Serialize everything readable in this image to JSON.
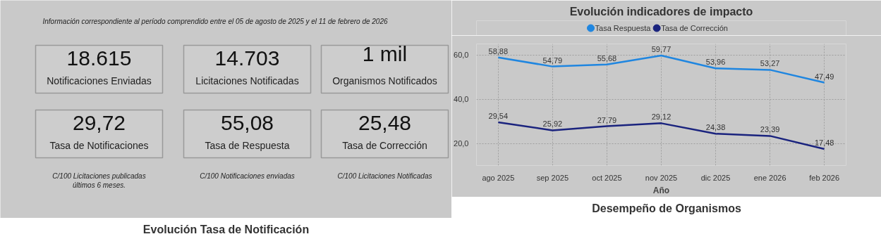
{
  "chart_data": [
    {
      "type": "other",
      "subtitle": "Información correspondiente al período comprendido entre el 05 de agosto de 2025 y el 11 de febrero de 2026",
      "annotations": [
        "18.615",
        "Notificaciones Enviadas",
        "14.703",
        "Licitaciones Notificadas",
        "1 mil",
        "Organismos Notificados",
        "29,72",
        "Tasa de Notificaciones",
        "55,08",
        "Tasa de Respuesta",
        "25,48",
        "Tasa de Corrección",
        "C/100 Licitaciones publicadas\núltimos 6 meses.",
        "C/100 Notificaciones enviadas",
        "C/100 Licitaciones Notificadas"
      ]
    },
    {
      "type": "line",
      "title": "Evolución indicadores de impacto",
      "xlabel": "Año",
      "categories": [
        "ago 2025",
        "sep 2025",
        "oct 2025",
        "nov 2025",
        "dic 2025",
        "ene 2026",
        "feb 2026"
      ],
      "ylim": [
        10,
        65
      ],
      "yticks": [
        {
          "value": 20,
          "label": "20,0"
        },
        {
          "value": 40,
          "label": "40,0"
        },
        {
          "value": 60,
          "label": "60,0"
        }
      ],
      "grid": true,
      "legend": "top",
      "marker": "none",
      "line_style": "solid",
      "series": [
        {
          "name": "Tasa Respuesta",
          "color": "#1f86e0",
          "values": [
            58.88,
            54.79,
            55.68,
            59.77,
            53.96,
            53.27,
            47.49
          ],
          "value_labels": [
            "58,88",
            "54,79",
            "55,68",
            "59,77",
            "53,96",
            "53,27",
            "47,49"
          ]
        },
        {
          "name": "Tasa de Corrección",
          "color": "#1a237e",
          "values": [
            29.54,
            25.92,
            27.79,
            29.12,
            24.38,
            23.39,
            17.48
          ],
          "value_labels": [
            "29,54",
            "25,92",
            "27,79",
            "29,12",
            "24,38",
            "23,39",
            "17,48"
          ]
        }
      ]
    },
    {
      "type": "other",
      "title": "Evolución Tasa de Notificación"
    },
    {
      "type": "other",
      "title": "Desempeño de Organismos"
    }
  ]
}
